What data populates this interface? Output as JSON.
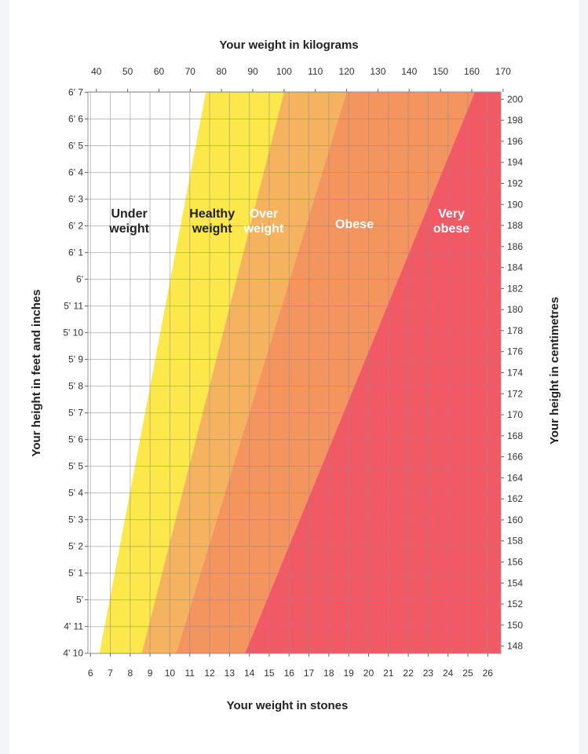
{
  "chart_data": {
    "type": "area",
    "title": "",
    "top_axis": {
      "label": "Your weight in kilograms",
      "ticks": [
        40,
        50,
        60,
        70,
        80,
        90,
        100,
        110,
        120,
        130,
        140,
        150,
        160,
        170
      ]
    },
    "bottom_axis": {
      "label": "Your weight in stones",
      "ticks": [
        6,
        7,
        8,
        9,
        10,
        11,
        12,
        13,
        14,
        15,
        16,
        17,
        18,
        19,
        20,
        21,
        22,
        23,
        24,
        25,
        26
      ]
    },
    "left_axis": {
      "label": "Your height in feet and inches",
      "ticks": [
        "4' 10",
        "4' 11",
        "5'",
        "5' 1",
        "5' 2",
        "5' 3",
        "5' 4",
        "5' 5",
        "5' 6",
        "5' 7",
        "5' 8",
        "5' 9",
        "5' 10",
        "5' 11",
        "6'",
        "6' 1",
        "6' 2",
        "6' 3",
        "6' 4",
        "6' 5",
        "6' 6",
        "6' 7"
      ]
    },
    "right_axis": {
      "label": "Your height in centimetres",
      "ticks": [
        148,
        150,
        152,
        154,
        156,
        158,
        160,
        162,
        164,
        166,
        168,
        170,
        172,
        174,
        176,
        178,
        180,
        182,
        184,
        186,
        188,
        190,
        192,
        194,
        196,
        198,
        200
      ]
    },
    "xlim_kg": [
      37.3,
      169.3
    ],
    "ylim_cm": [
      147.3,
      200.7
    ],
    "grid": true,
    "regions": [
      {
        "lines": [
          "Under",
          "weight"
        ],
        "lower_kg": [
          37.3,
          37.3
        ],
        "upper_kg": [
          41.0,
          75.0
        ],
        "color": "#ffffff",
        "text_color": "#222222",
        "label_pos": {
          "kg": 50.5,
          "cm": 188.5
        }
      },
      {
        "lines": [
          "Healthy",
          "weight"
        ],
        "lower_kg": [
          41.0,
          75.0
        ],
        "upper_kg": [
          54.5,
          100.0
        ],
        "color": "#fce84a",
        "text_color": "#222222",
        "label_pos": {
          "kg": 77.0,
          "cm": 188.5
        }
      },
      {
        "lines": [
          "Over",
          "weight"
        ],
        "lower_kg": [
          54.5,
          100.0
        ],
        "upper_kg": [
          65.5,
          120.0
        ],
        "color": "#f5b35f",
        "text_color": "#ffffff",
        "label_pos": {
          "kg": 93.5,
          "cm": 188.5
        }
      },
      {
        "lines": [
          "Obese"
        ],
        "lower_kg": [
          65.5,
          120.0
        ],
        "upper_kg": [
          87.5,
          161.0
        ],
        "color": "#f4945f",
        "text_color": "#ffffff",
        "label_pos": {
          "kg": 122.5,
          "cm": 188.2
        }
      },
      {
        "lines": [
          "Very",
          "obese"
        ],
        "lower_kg": [
          87.5,
          161.0
        ],
        "upper_kg": [
          169.3,
          169.3
        ],
        "color": "#f15a64",
        "text_color": "#ffffff",
        "label_pos": {
          "kg": 153.5,
          "cm": 188.5
        }
      }
    ]
  }
}
